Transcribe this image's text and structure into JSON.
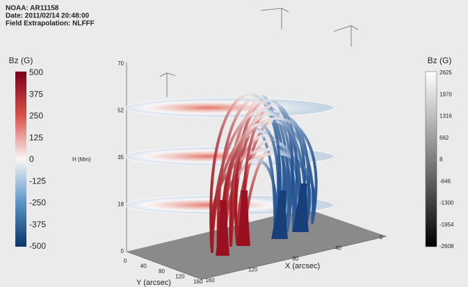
{
  "header": {
    "lines": [
      "NOAA: AR11158",
      "Date: 2011/02/14 20:48:00",
      "Field Extrapolation: NLFFF"
    ]
  },
  "left_colorbar": {
    "title": "Bz (G)",
    "ticks": [
      500,
      375,
      250,
      125,
      0,
      -125,
      -250,
      -375,
      -500
    ]
  },
  "right_colorbar": {
    "title": "Bz (G)",
    "ticks": [
      2625,
      1970,
      1316,
      662,
      8,
      -646,
      -1300,
      -1954,
      -2608
    ]
  },
  "axes": {
    "h_label": "H (Mm)",
    "h_ticks": [
      "70",
      "52",
      "35",
      "18",
      "0"
    ],
    "x_label": "X (arcsec)",
    "x_ticks": [
      "160",
      "120",
      "80",
      "40",
      "0"
    ],
    "y_label": "Y (arcsec)",
    "y_ticks": [
      "0",
      "40",
      "80",
      "120",
      "160"
    ]
  }
}
